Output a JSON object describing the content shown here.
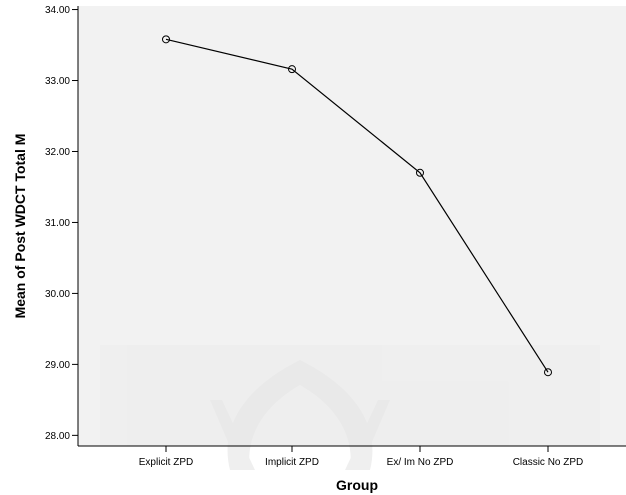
{
  "chart_data": {
    "type": "line",
    "title": "",
    "xlabel": "Group",
    "ylabel": "Mean of Post WDCT Total M",
    "categories": [
      "Explicit ZPD",
      "Implicit ZPD",
      "Ex/ Im No ZPD",
      "Classic No ZPD"
    ],
    "series": [
      {
        "values": [
          33.58,
          33.16,
          31.7,
          28.89
        ]
      }
    ],
    "ylim": [
      27.85,
      34.05
    ],
    "yticks": [
      "28.00",
      "29.00",
      "30.00",
      "31.00",
      "32.00",
      "33.00",
      "34.00"
    ],
    "grid": false,
    "marker": "open-circle",
    "colors": {
      "line": "#000000",
      "plot_background": "#f2f2f2",
      "watermark": "#e6e6e6"
    }
  }
}
